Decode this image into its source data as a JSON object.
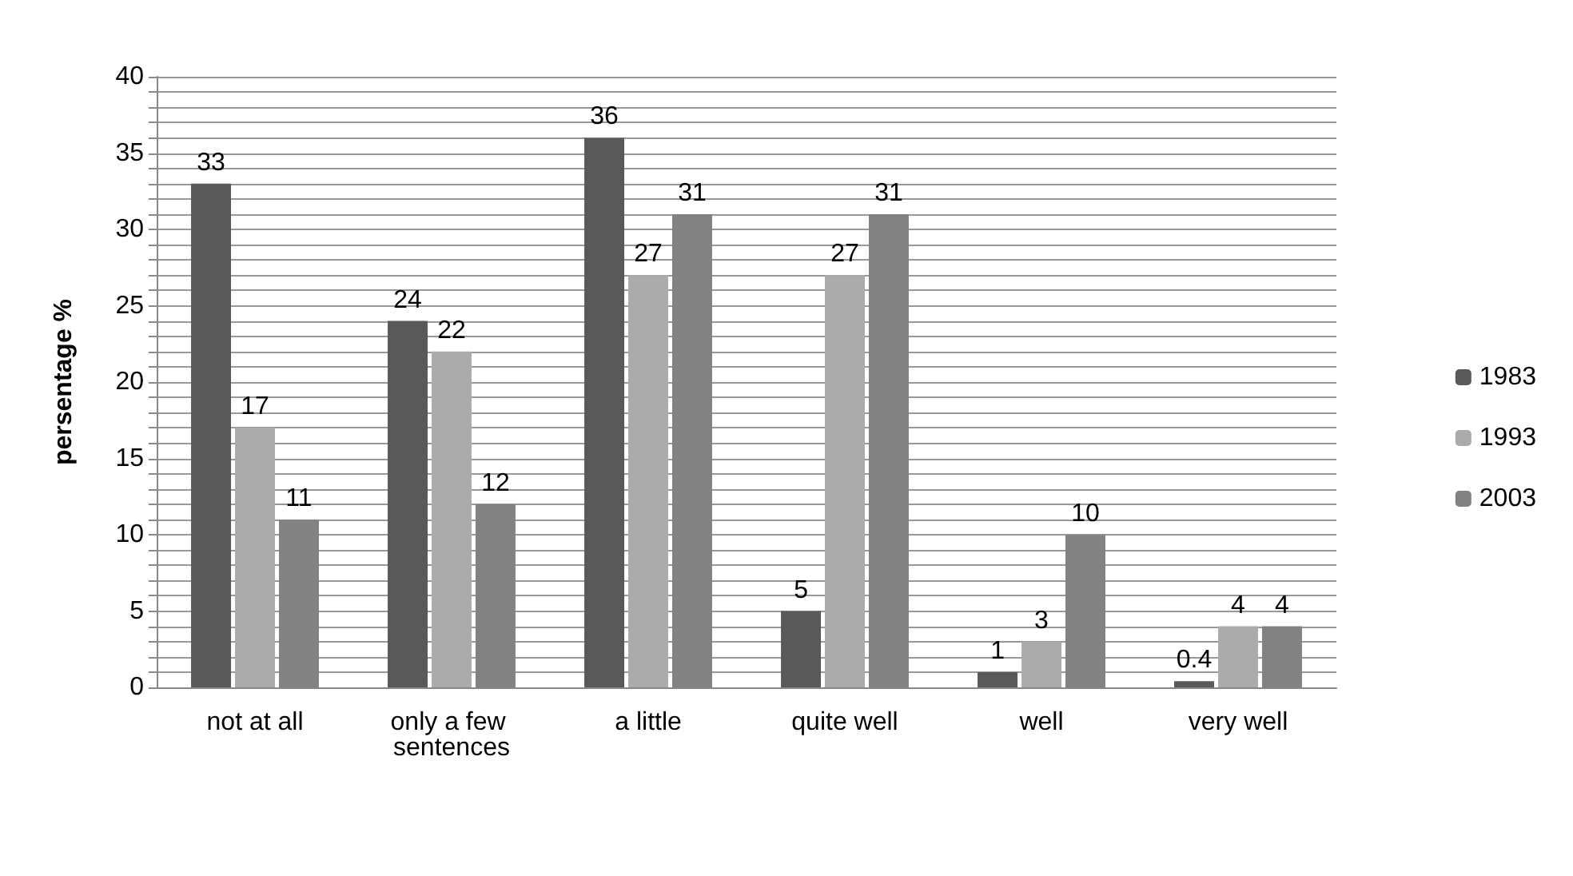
{
  "chart_data": {
    "type": "bar",
    "ylabel": "persentage %",
    "categories": [
      "not at all",
      "only a few sentences",
      "a little",
      "quite well",
      "well",
      "very well"
    ],
    "series": [
      {
        "name": "1983",
        "color": "#595959",
        "values": [
          33,
          24,
          36,
          5,
          1,
          0.4
        ]
      },
      {
        "name": "1993",
        "color": "#ababab",
        "values": [
          17,
          22,
          27,
          27,
          3,
          4
        ]
      },
      {
        "name": "2003",
        "color": "#828282",
        "values": [
          11,
          12,
          31,
          31,
          10,
          4
        ]
      }
    ],
    "ylim": [
      0,
      40
    ],
    "yticks": [
      0,
      {
        "value": 1,
        "label": null
      },
      {
        "value": 2,
        "label": null
      },
      {
        "value": 3,
        "label": null
      },
      {
        "value": 4,
        "label": null
      },
      5,
      {
        "value": 6,
        "label": null
      },
      {
        "value": 7,
        "label": null
      },
      {
        "value": 8,
        "label": null
      },
      {
        "value": 9,
        "label": null
      },
      10,
      {
        "value": 11,
        "label": null
      },
      {
        "value": 12,
        "label": null
      },
      {
        "value": 13,
        "label": null
      },
      {
        "value": 14,
        "label": null
      },
      15,
      {
        "value": 16,
        "label": null
      },
      {
        "value": 17,
        "label": null
      },
      {
        "value": 18,
        "label": null
      },
      {
        "value": 19,
        "label": null
      },
      20,
      {
        "value": 21,
        "label": null
      },
      {
        "value": 22,
        "label": null
      },
      {
        "value": 23,
        "label": null
      },
      {
        "value": 24,
        "label": null
      },
      25,
      {
        "value": 26,
        "label": null
      },
      {
        "value": 27,
        "label": null
      },
      {
        "value": 28,
        "label": null
      },
      {
        "value": 29,
        "label": null
      },
      30,
      {
        "value": 31,
        "label": null
      },
      {
        "value": 32,
        "label": null
      },
      {
        "value": 33,
        "label": null
      },
      {
        "value": 34,
        "label": null
      },
      35,
      {
        "value": 36,
        "label": null
      },
      {
        "value": 37,
        "label": null
      },
      {
        "value": 38,
        "label": null
      },
      {
        "value": 39,
        "label": null
      },
      40
    ],
    "grid": "y",
    "legend": "right",
    "data_labels": true
  }
}
